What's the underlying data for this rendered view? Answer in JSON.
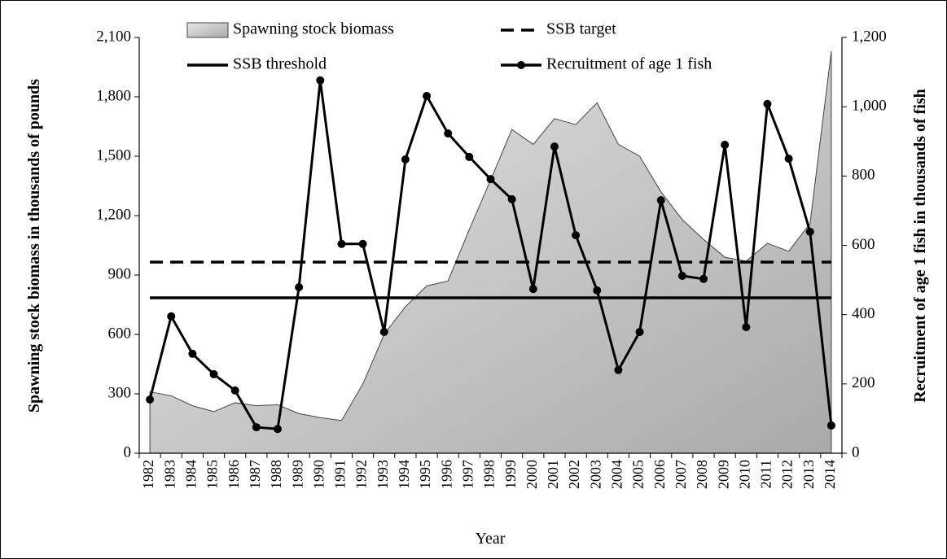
{
  "chart_data": {
    "type": "area-line",
    "x_label": "Year",
    "y_label": "Spawning stock biomass in thousands of pounds",
    "y2_label": "Recruitment of age 1 fish in thousands of fish",
    "categories": [
      "1982",
      "1983",
      "1984",
      "1985",
      "1986",
      "1987",
      "1988",
      "1989",
      "1990",
      "1991",
      "1992",
      "1993",
      "1994",
      "1995",
      "1996",
      "1997",
      "1998",
      "1999",
      "2000",
      "2001",
      "2002",
      "2003",
      "2004",
      "2005",
      "2006",
      "2007",
      "2008",
      "2009",
      "2010",
      "2011",
      "2012",
      "2013",
      "2014"
    ],
    "ylim": [
      0,
      2100
    ],
    "yticks": [
      0,
      {
        "value": 300,
        "label": "300"
      },
      600,
      900,
      {
        "value": 1200,
        "label": "1,200"
      },
      {
        "value": 1500,
        "label": "1,500"
      },
      {
        "value": 1800,
        "label": "1,800"
      },
      {
        "value": 2100,
        "label": "2,100"
      }
    ],
    "y2lim": [
      0,
      1200
    ],
    "y2ticks": [
      0,
      200,
      400,
      600,
      800,
      {
        "value": 1000,
        "label": "1,000"
      },
      {
        "value": 1200,
        "label": "1,200"
      }
    ],
    "series": [
      {
        "name": "Spawning stock biomass",
        "kind": "area",
        "color": "#bdbdbd",
        "values": [
          310,
          290,
          240,
          210,
          255,
          240,
          245,
          200,
          180,
          165,
          350,
          600,
          740,
          845,
          870,
          1130,
          1380,
          1635,
          1560,
          1690,
          1660,
          1770,
          1560,
          1500,
          1320,
          1180,
          1080,
          990,
          970,
          1060,
          1020,
          1160,
          2030
        ]
      },
      {
        "name": "Recruitment of age 1 fish",
        "kind": "line-marker",
        "axis": "y2",
        "color": "#000000",
        "values": [
          155,
          395,
          287,
          228,
          181,
          75,
          70,
          479,
          1076,
          604,
          604,
          350,
          848,
          1031,
          923,
          855,
          791,
          733,
          474,
          885,
          629,
          470,
          240,
          350,
          730,
          512,
          503,
          890,
          364,
          1008,
          850,
          639,
          80
        ]
      }
    ],
    "reference_lines": [
      {
        "name": "SSB target",
        "value": 965,
        "dash": true,
        "color": "#000000"
      },
      {
        "name": "SSB threshold",
        "value": 785,
        "dash": false,
        "color": "#000000"
      }
    ]
  }
}
